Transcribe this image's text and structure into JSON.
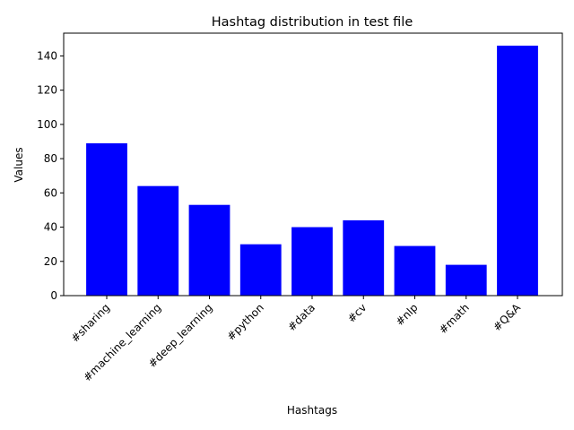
{
  "chart_data": {
    "type": "bar",
    "title": "Hashtag distribution in test file",
    "xlabel": "Hashtags",
    "ylabel": "Values",
    "categories": [
      "#sharing",
      "#machine_learning",
      "#deep_learning",
      "#python",
      "#data",
      "#cv",
      "#nlp",
      "#math",
      "#Q&A"
    ],
    "values": [
      89,
      64,
      53,
      30,
      40,
      44,
      29,
      18,
      146
    ],
    "ylim": [
      0,
      153.3
    ],
    "yticks": [
      0,
      20,
      40,
      60,
      80,
      100,
      120,
      140
    ],
    "bar_color": "#0000ff",
    "grid": false,
    "legend": "none"
  }
}
